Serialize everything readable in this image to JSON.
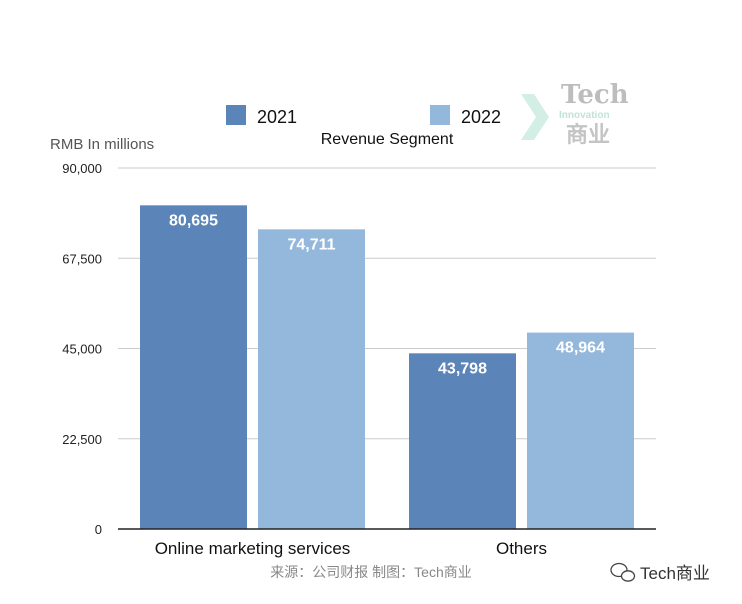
{
  "chart_data": {
    "type": "bar",
    "title": "Revenue Segment",
    "ylabel": "RMB In millions",
    "categories": [
      "Online marketing services",
      "Others"
    ],
    "series": [
      {
        "name": "2021",
        "color": "#5b84b8",
        "values": [
          80695,
          43798
        ],
        "labels": [
          "80,695",
          "43,798"
        ]
      },
      {
        "name": "2022",
        "color": "#94b8dc",
        "values": [
          74711,
          48964
        ],
        "labels": [
          "74,711",
          "48,964"
        ]
      }
    ],
    "ylim": [
      0,
      90000
    ],
    "yticks": [
      0,
      22500,
      45000,
      67500,
      90000
    ],
    "ytick_labels": [
      "0",
      "22,500",
      "45,000",
      "67,500",
      "90,000"
    ],
    "grid": true,
    "legend": "top"
  },
  "source": "来源：公司财报 制图：Tech商业",
  "watermark": {
    "line1": "Tech",
    "line2": "Innovation",
    "line3": "商业"
  },
  "footer_brand": "Tech商业"
}
